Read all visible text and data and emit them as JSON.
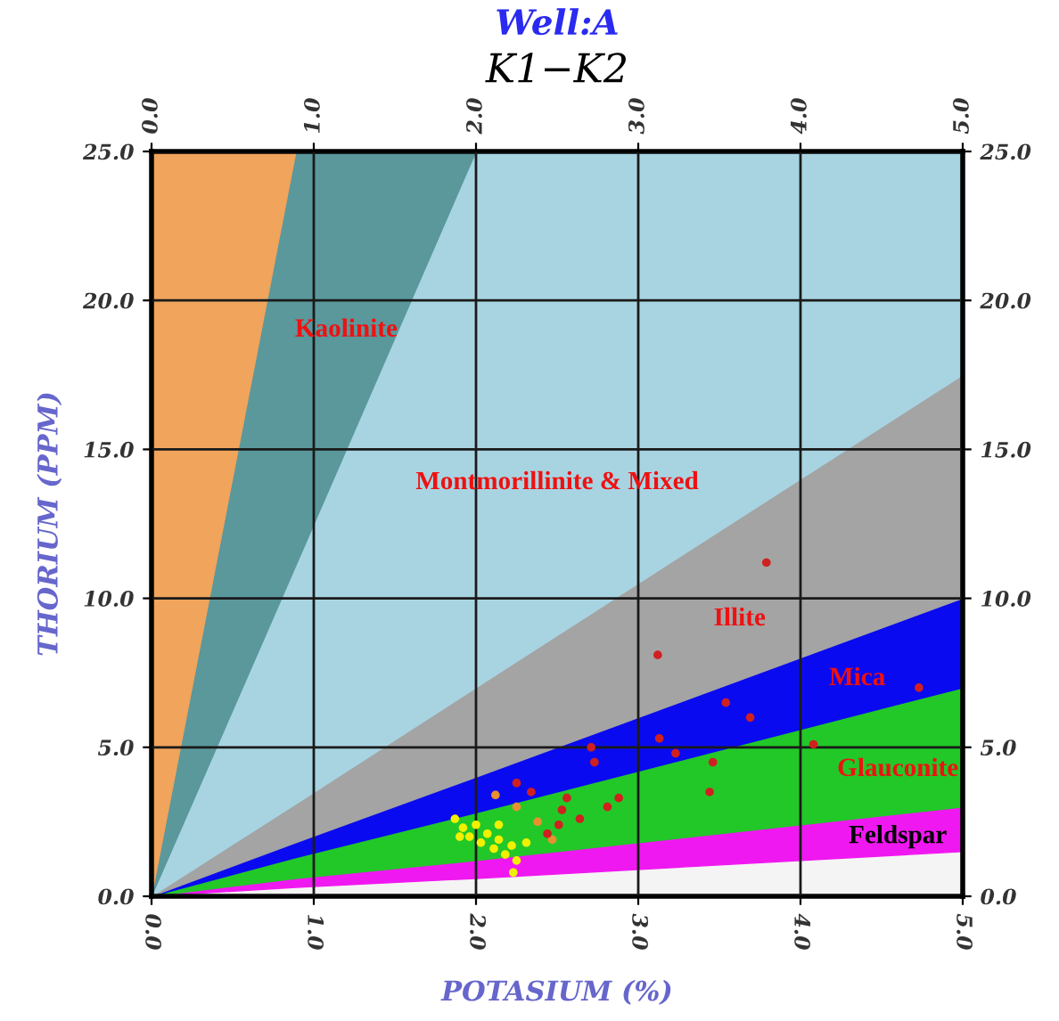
{
  "chart_data": {
    "type": "scatter",
    "title": "Well:A",
    "subtitle": "K1−K2",
    "xlabel": "POTASIUM (%)",
    "ylabel": "THORIUM (PPM)",
    "xlim": [
      0,
      5
    ],
    "ylim": [
      0,
      25
    ],
    "x2lim": [
      0,
      5
    ],
    "y2lim": [
      0,
      25
    ],
    "xticks": [
      {
        "value": 0,
        "label": "0.0"
      },
      {
        "value": 1,
        "label": "1.0"
      },
      {
        "value": 2,
        "label": "2.0"
      },
      {
        "value": 3,
        "label": "3.0"
      },
      {
        "value": 4,
        "label": "4.0"
      },
      {
        "value": 5,
        "label": "5.0"
      }
    ],
    "x2ticks": [
      {
        "value": 0,
        "label": "0.0"
      },
      {
        "value": 1,
        "label": "1.0"
      },
      {
        "value": 2,
        "label": "2.0"
      },
      {
        "value": 3,
        "label": "3.0"
      },
      {
        "value": 4,
        "label": "4.0"
      },
      {
        "value": 5,
        "label": "5.0"
      }
    ],
    "yticks": [
      {
        "value": 0,
        "label": "0.0"
      },
      {
        "value": 5,
        "label": "5.0"
      },
      {
        "value": 10,
        "label": "10.0"
      },
      {
        "value": 15,
        "label": "15.0"
      },
      {
        "value": 20,
        "label": "20.0"
      },
      {
        "value": 25,
        "label": "25.0"
      }
    ],
    "y2ticks": [
      {
        "value": 0,
        "label": "0.0"
      },
      {
        "value": 5,
        "label": "5.0"
      },
      {
        "value": 10,
        "label": "10.0"
      },
      {
        "value": 15,
        "label": "15.0"
      },
      {
        "value": 20,
        "label": "20.0"
      },
      {
        "value": 25,
        "label": "25.0"
      }
    ],
    "grid": true,
    "stacked": true,
    "series": [
      {
        "type": "area",
        "color": "#f4f4f4",
        "x": [
          0,
          0.89,
          2.0,
          5
        ],
        "values": [
          0,
          0.3,
          0.6,
          1.5
        ]
      },
      {
        "type": "area",
        "color": "#f018f0",
        "x": [
          0,
          0.89,
          2.0,
          5
        ],
        "values": [
          0,
          0.3,
          0.6,
          1.5
        ]
      },
      {
        "type": "area",
        "color": "#22c828",
        "x": [
          0,
          0.89,
          2.0,
          5
        ],
        "values": [
          0,
          0.7,
          1.6,
          4
        ]
      },
      {
        "type": "area",
        "color": "#0a0af0",
        "x": [
          0,
          0.89,
          2.0,
          5
        ],
        "values": [
          0,
          0.5,
          1.2,
          3
        ]
      },
      {
        "type": "area",
        "color": "#a4a4a4",
        "x": [
          0,
          0.89,
          2.0,
          5
        ],
        "values": [
          0,
          1.3,
          3,
          7.5
        ]
      },
      {
        "type": "area",
        "color": "#a8d4e2",
        "x": [
          0,
          0.89,
          2.0,
          5
        ],
        "values": [
          0,
          8.0,
          18,
          7.5
        ]
      },
      {
        "type": "area",
        "color": "#5a989c",
        "x": [
          0,
          0.89,
          2.0
        ],
        "values": [
          0,
          13.9,
          0
        ]
      },
      {
        "type": "area",
        "color": "#f0a45c",
        "x": [
          0,
          0.89
        ],
        "values": [
          25,
          0
        ]
      },
      {
        "marker": "circle",
        "color": "#f0f000",
        "x": [
          1.87,
          1.92,
          2.0,
          2.07,
          2.03,
          2.14,
          2.22,
          2.31,
          2.18,
          2.25,
          2.23,
          2.11,
          1.96,
          1.9,
          2.14
        ],
        "values": [
          2.6,
          2.3,
          2.4,
          2.1,
          1.8,
          1.9,
          1.7,
          1.8,
          1.4,
          1.2,
          0.8,
          1.6,
          2.0,
          2.0,
          2.4
        ]
      },
      {
        "marker": "circle",
        "color": "#e89030",
        "x": [
          2.25,
          2.38,
          2.47,
          2.12
        ],
        "values": [
          3.0,
          2.5,
          1.9,
          3.4
        ]
      },
      {
        "marker": "circle",
        "color": "#d02020",
        "x": [
          3.79,
          3.12,
          3.54,
          3.69,
          4.73,
          3.13,
          3.23,
          2.71,
          2.73,
          3.46,
          3.44,
          4.08,
          2.88,
          2.81,
          2.56,
          2.53,
          2.64,
          2.51,
          2.34,
          2.25,
          2.44
        ],
        "values": [
          11.2,
          8.1,
          6.5,
          6.0,
          7.0,
          5.3,
          4.8,
          5.0,
          4.5,
          4.5,
          3.5,
          5.1,
          3.3,
          3.0,
          3.3,
          2.9,
          2.6,
          2.4,
          3.5,
          3.8,
          2.1
        ]
      }
    ],
    "annotations": [
      "Kaolinite",
      "Montmorillinite & Mixed",
      "Illite",
      "Mica",
      "Glauconite",
      "Feldspar"
    ]
  }
}
